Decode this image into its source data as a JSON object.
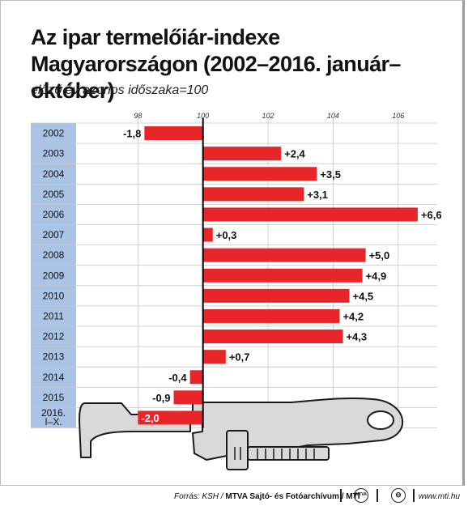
{
  "chart_data": {
    "type": "bar",
    "title": "Az ipar termelőiár-indexe Magyarországon (2002–2016. január–október)",
    "subtitle": "előző év azonos időszaka=100",
    "baseline": 100,
    "xlim": [
      96.2,
      107.2
    ],
    "x_ticks": [
      98,
      100,
      102,
      104,
      106
    ],
    "grid": true,
    "categories": [
      "2002",
      "2003",
      "2004",
      "2005",
      "2006",
      "2007",
      "2008",
      "2009",
      "2010",
      "2011",
      "2012",
      "2013",
      "2014",
      "2015",
      "2016.\nI–X."
    ],
    "values": [
      -1.8,
      2.4,
      3.5,
      3.1,
      6.6,
      0.3,
      5.0,
      4.9,
      4.5,
      4.2,
      4.3,
      0.7,
      -0.4,
      -0.9,
      -2.0
    ],
    "value_labels": [
      "-1,8",
      "+2,4",
      "+3,5",
      "+3,1",
      "+6,6",
      "+0,3",
      "+5,0",
      "+4,9",
      "+4,5",
      "+4,2",
      "+4,3",
      "+0,7",
      "-0,4",
      "-0,9",
      "-2,0"
    ],
    "colors": {
      "bar": "#e8262a",
      "year_column": "#a9c4e4",
      "grid": "#c8c8c8",
      "axis": "#000000"
    }
  },
  "footer": {
    "source_prefix": "Forrás: KSH / ",
    "source_bold": "MTVA Sajtó- és Fotóarchívum / MTI",
    "logo_text": "MTVA",
    "website": "www.mti.hu"
  },
  "illustration": {
    "icon": "pipe-wrench-icon"
  }
}
